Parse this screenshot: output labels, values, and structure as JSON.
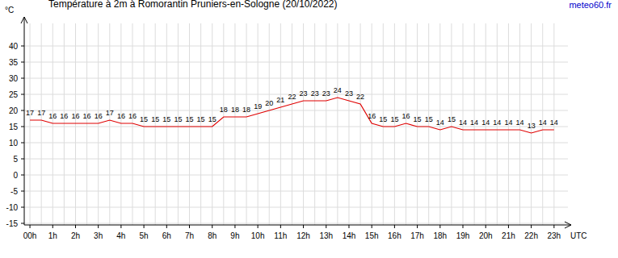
{
  "chart_data": {
    "type": "line",
    "title": "Température à 2m à Romorantin Pruniers-en-Sologne (20/10/2022)",
    "source": "meteo60.fr",
    "y_label": "°C",
    "x_label": "UTC",
    "x": [
      0,
      0.5,
      1,
      1.5,
      2,
      2.5,
      3,
      3.5,
      4,
      4.5,
      5,
      5.5,
      6,
      6.5,
      7,
      7.5,
      8,
      8.5,
      9,
      9.5,
      10,
      10.5,
      11,
      11.5,
      12,
      12.5,
      13,
      13.5,
      14,
      14.5,
      15,
      15.5,
      16,
      16.5,
      17,
      17.5,
      18,
      18.5,
      19,
      19.5,
      20,
      20.5,
      21,
      21.5,
      22,
      22.5,
      23
    ],
    "series": [
      {
        "name": "Température",
        "color": "#e00000",
        "values": [
          17,
          17,
          16,
          16,
          16,
          16,
          16,
          17,
          16,
          16,
          15,
          15,
          15,
          15,
          15,
          15,
          15,
          18,
          18,
          18,
          19,
          20,
          21,
          22,
          23,
          23,
          23,
          24,
          23,
          22,
          16,
          15,
          15,
          16,
          15,
          15,
          14,
          15,
          14,
          14,
          14,
          14,
          14,
          14,
          13,
          14,
          14
        ]
      }
    ],
    "xlim": [
      -0.25,
      23.75
    ],
    "xticks": [
      {
        "value": 0,
        "label": "00h"
      },
      {
        "value": 1,
        "label": "1h"
      },
      {
        "value": 2,
        "label": "2h"
      },
      {
        "value": 3,
        "label": "3h"
      },
      {
        "value": 4,
        "label": "4h"
      },
      {
        "value": 5,
        "label": "5h"
      },
      {
        "value": 6,
        "label": "6h"
      },
      {
        "value": 7,
        "label": "7h"
      },
      {
        "value": 8,
        "label": "8h"
      },
      {
        "value": 9,
        "label": "9h"
      },
      {
        "value": 10,
        "label": "10h"
      },
      {
        "value": 11,
        "label": "11h"
      },
      {
        "value": 12,
        "label": "12h"
      },
      {
        "value": 13,
        "label": "13h"
      },
      {
        "value": 14,
        "label": "14h"
      },
      {
        "value": 15,
        "label": "15h"
      },
      {
        "value": 16,
        "label": "16h"
      },
      {
        "value": 17,
        "label": "17h"
      },
      {
        "value": 18,
        "label": "18h"
      },
      {
        "value": 19,
        "label": "19h"
      },
      {
        "value": 20,
        "label": "20h"
      },
      {
        "value": 21,
        "label": "21h"
      },
      {
        "value": 22,
        "label": "22h"
      },
      {
        "value": 23,
        "label": "23h"
      }
    ],
    "ylim": [
      -15.5,
      49
    ],
    "yticks": [
      -15,
      -10,
      -5,
      0,
      5,
      10,
      15,
      20,
      25,
      30,
      35,
      40
    ],
    "grid": true,
    "data_labels": true
  }
}
